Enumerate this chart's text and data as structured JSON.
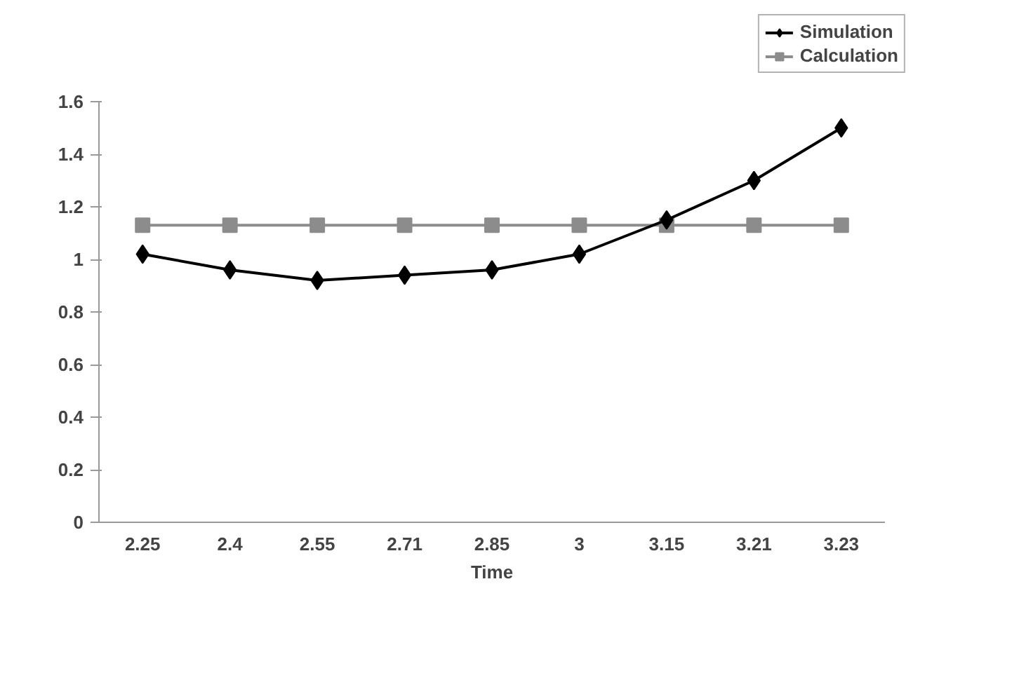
{
  "chart_data": {
    "type": "line",
    "xlabel": "Time",
    "categories": [
      "2.25",
      "2.4",
      "2.55",
      "2.71",
      "2.85",
      "3",
      "3.15",
      "3.21",
      "3.23"
    ],
    "series": [
      {
        "name": "Simulation",
        "color": "#000000",
        "marker": "diamond",
        "values": [
          1.02,
          0.96,
          0.92,
          0.94,
          0.96,
          1.02,
          1.15,
          1.3,
          1.5
        ]
      },
      {
        "name": "Calculation",
        "color": "#8c8c8c",
        "marker": "square",
        "values": [
          1.13,
          1.13,
          1.13,
          1.13,
          1.13,
          1.13,
          1.13,
          1.13,
          1.13
        ]
      }
    ],
    "ylim": [
      0,
      1.6
    ],
    "yticks": [
      0,
      0.2,
      0.4,
      0.6,
      0.8,
      1,
      1.2,
      1.4,
      1.6
    ],
    "grid": false,
    "legend": "top right",
    "line_style": "solid"
  }
}
